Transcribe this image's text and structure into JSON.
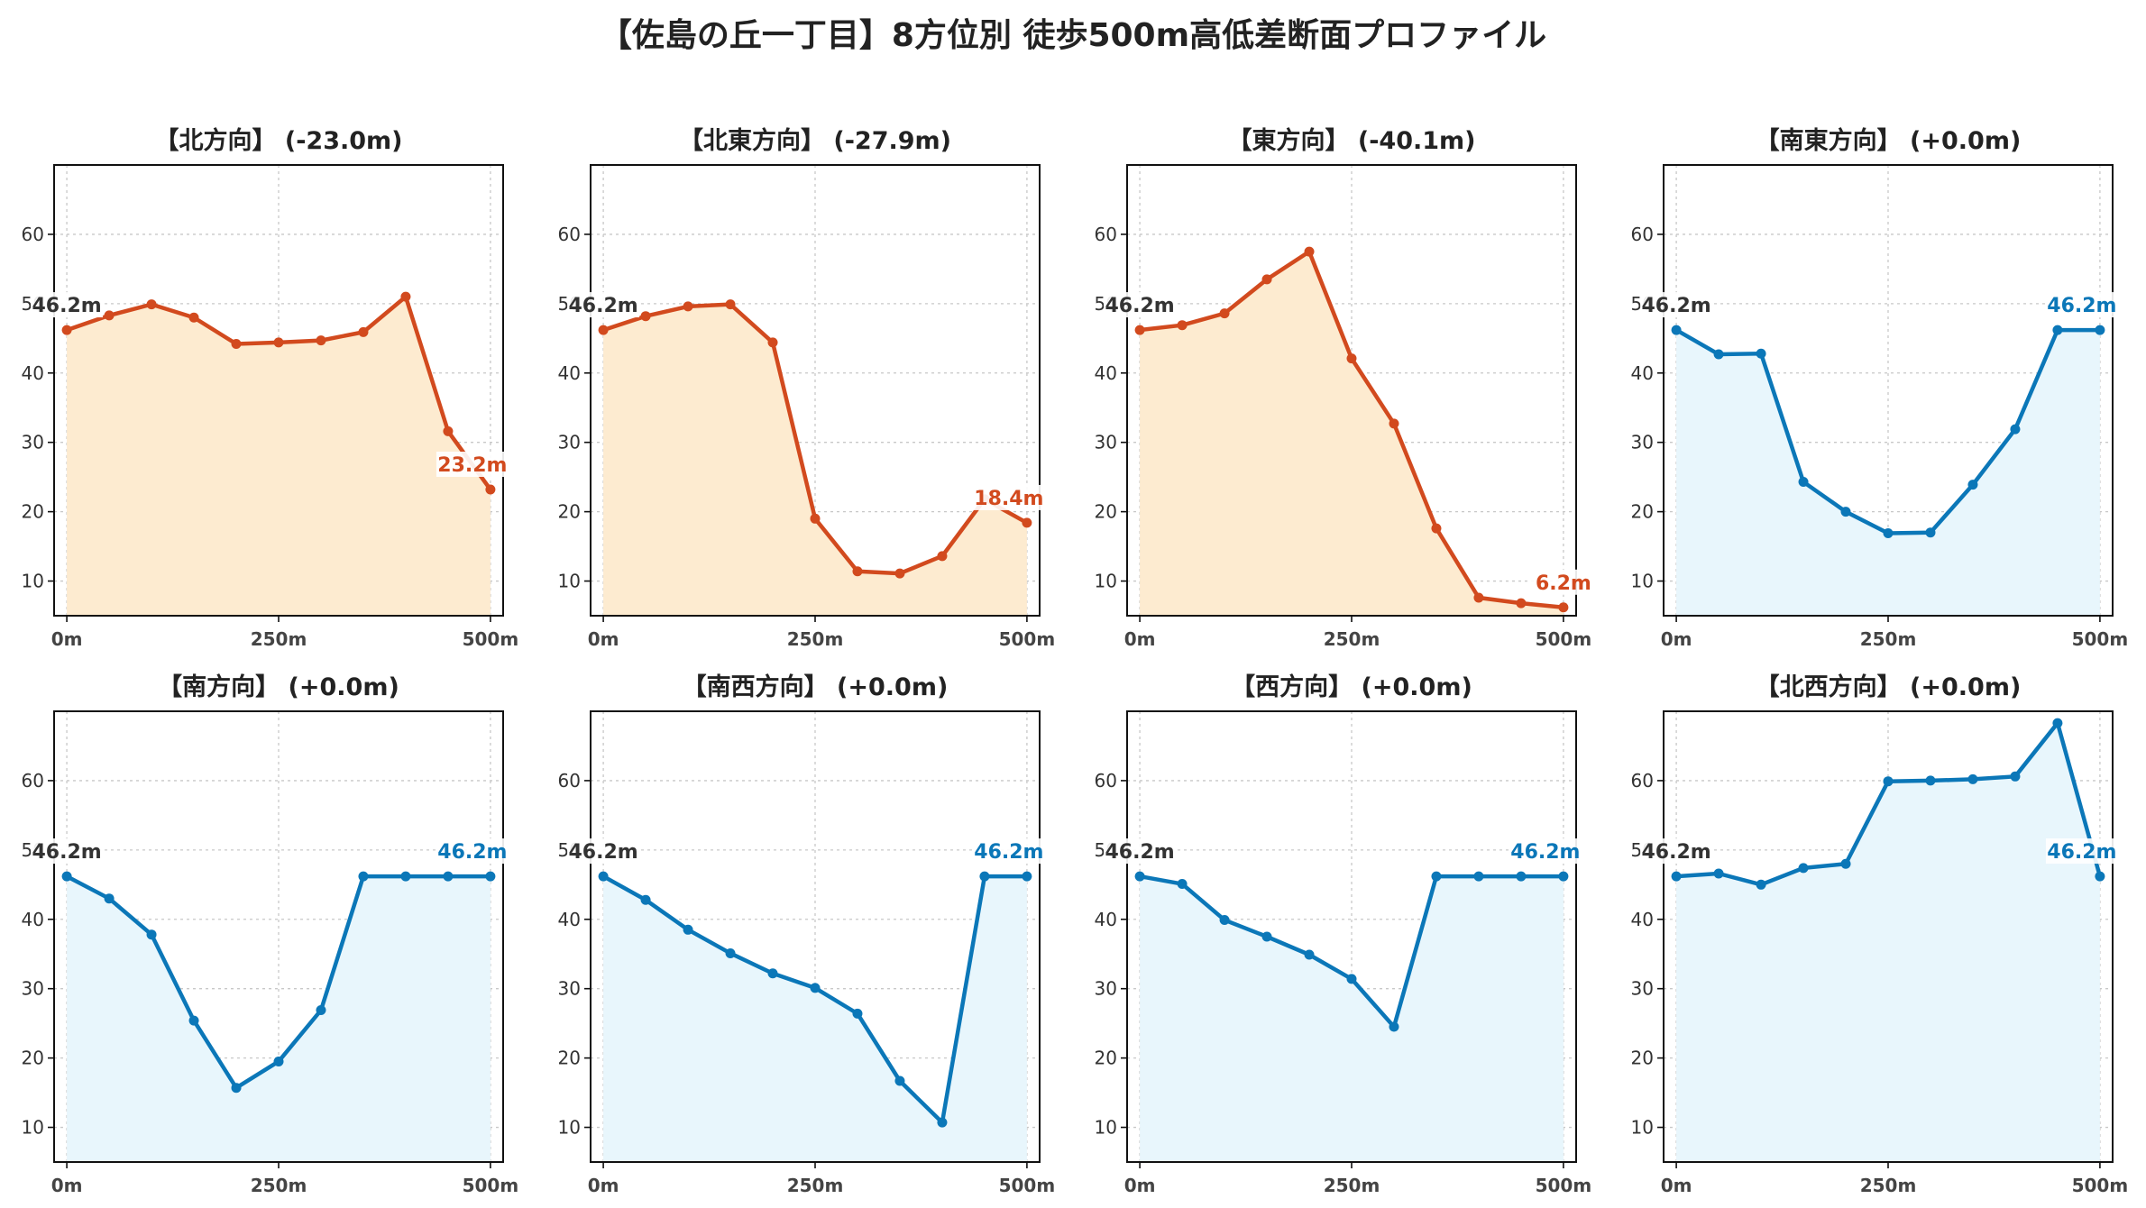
{
  "title": "【佐島の丘一丁目】8方位別 徒歩500m高低差断面プロファイル",
  "colors": {
    "down": "#d24a1e",
    "downFill": "#fdebd0",
    "flat": "#0b77b8",
    "flatFill": "#e8f6fc",
    "startLabel": "#333333"
  },
  "chart_data": [
    {
      "type": "area",
      "title": "【北方向】 (-23.0m)",
      "x": [
        0,
        50,
        100,
        150,
        200,
        250,
        300,
        350,
        400,
        450,
        500
      ],
      "y": [
        46.2,
        48.3,
        49.9,
        48.0,
        44.2,
        44.4,
        44.7,
        45.9,
        51.0,
        31.6,
        23.2
      ],
      "start_label": "46.2m",
      "end_label": "23.2m",
      "color": "down",
      "xticks": [
        "0m",
        "250m",
        "500m"
      ],
      "yticks": [
        10,
        20,
        30,
        40,
        50,
        60
      ],
      "ylim": [
        5,
        70
      ],
      "xlim": [
        -15,
        515
      ],
      "grid": true
    },
    {
      "type": "area",
      "title": "【北東方向】 (-27.9m)",
      "x": [
        0,
        50,
        100,
        150,
        200,
        250,
        300,
        350,
        400,
        450,
        500
      ],
      "y": [
        46.2,
        48.2,
        49.6,
        49.9,
        44.4,
        19.0,
        11.4,
        11.1,
        13.6,
        21.8,
        18.4
      ],
      "start_label": "46.2m",
      "end_label": "18.4m",
      "color": "down",
      "xticks": [
        "0m",
        "250m",
        "500m"
      ],
      "yticks": [
        10,
        20,
        30,
        40,
        50,
        60
      ],
      "ylim": [
        5,
        70
      ],
      "xlim": [
        -15,
        515
      ],
      "grid": true
    },
    {
      "type": "area",
      "title": "【東方向】 (-40.1m)",
      "x": [
        0,
        50,
        100,
        150,
        200,
        250,
        300,
        350,
        400,
        450,
        500
      ],
      "y": [
        46.2,
        46.9,
        48.6,
        53.5,
        57.5,
        42.1,
        32.7,
        17.6,
        7.6,
        6.8,
        6.2
      ],
      "start_label": "46.2m",
      "end_label": "6.2m",
      "color": "down",
      "xticks": [
        "0m",
        "250m",
        "500m"
      ],
      "yticks": [
        10,
        20,
        30,
        40,
        50,
        60
      ],
      "ylim": [
        5,
        70
      ],
      "xlim": [
        -15,
        515
      ],
      "grid": true
    },
    {
      "type": "area",
      "title": "【南東方向】 (+0.0m)",
      "x": [
        0,
        50,
        100,
        150,
        200,
        250,
        300,
        350,
        400,
        450,
        500
      ],
      "y": [
        46.2,
        42.7,
        42.8,
        24.3,
        20.0,
        16.9,
        17.0,
        23.9,
        31.9,
        46.2,
        46.2
      ],
      "start_label": "46.2m",
      "end_label": "46.2m",
      "color": "flat",
      "xticks": [
        "0m",
        "250m",
        "500m"
      ],
      "yticks": [
        10,
        20,
        30,
        40,
        50,
        60
      ],
      "ylim": [
        5,
        70
      ],
      "xlim": [
        -15,
        515
      ],
      "grid": true
    },
    {
      "type": "area",
      "title": "【南方向】 (+0.0m)",
      "x": [
        0,
        50,
        100,
        150,
        200,
        250,
        300,
        350,
        400,
        450,
        500
      ],
      "y": [
        46.2,
        43.0,
        37.8,
        25.4,
        15.7,
        19.5,
        26.9,
        46.2,
        46.2,
        46.2,
        46.2
      ],
      "start_label": "46.2m",
      "end_label": "46.2m",
      "color": "flat",
      "xticks": [
        "0m",
        "250m",
        "500m"
      ],
      "yticks": [
        10,
        20,
        30,
        40,
        50,
        60
      ],
      "ylim": [
        5,
        70
      ],
      "xlim": [
        -15,
        515
      ],
      "grid": true
    },
    {
      "type": "area",
      "title": "【南西方向】 (+0.0m)",
      "x": [
        0,
        50,
        100,
        150,
        200,
        250,
        300,
        350,
        400,
        450,
        500
      ],
      "y": [
        46.2,
        42.8,
        38.5,
        35.1,
        32.2,
        30.1,
        26.4,
        16.7,
        10.7,
        46.2,
        46.2
      ],
      "start_label": "46.2m",
      "end_label": "46.2m",
      "color": "flat",
      "xticks": [
        "0m",
        "250m",
        "500m"
      ],
      "yticks": [
        10,
        20,
        30,
        40,
        50,
        60
      ],
      "ylim": [
        5,
        70
      ],
      "xlim": [
        -15,
        515
      ],
      "grid": true
    },
    {
      "type": "area",
      "title": "【西方向】 (+0.0m)",
      "x": [
        0,
        50,
        100,
        150,
        200,
        250,
        300,
        350,
        400,
        450,
        500
      ],
      "y": [
        46.2,
        45.1,
        39.9,
        37.5,
        34.9,
        31.4,
        24.5,
        46.2,
        46.2,
        46.2,
        46.2
      ],
      "start_label": "46.2m",
      "end_label": "46.2m",
      "color": "flat",
      "xticks": [
        "0m",
        "250m",
        "500m"
      ],
      "yticks": [
        10,
        20,
        30,
        40,
        50,
        60
      ],
      "ylim": [
        5,
        70
      ],
      "xlim": [
        -15,
        515
      ],
      "grid": true
    },
    {
      "type": "area",
      "title": "【北西方向】 (+0.0m)",
      "x": [
        0,
        50,
        100,
        150,
        200,
        250,
        300,
        350,
        400,
        450,
        500
      ],
      "y": [
        46.2,
        46.6,
        45.0,
        47.4,
        48.0,
        59.9,
        60.0,
        60.2,
        60.6,
        68.3,
        46.2
      ],
      "start_label": "46.2m",
      "end_label": "46.2m",
      "color": "flat",
      "xticks": [
        "0m",
        "250m",
        "500m"
      ],
      "yticks": [
        10,
        20,
        30,
        40,
        50,
        60
      ],
      "ylim": [
        5,
        70
      ],
      "xlim": [
        -15,
        515
      ],
      "grid": true
    }
  ]
}
